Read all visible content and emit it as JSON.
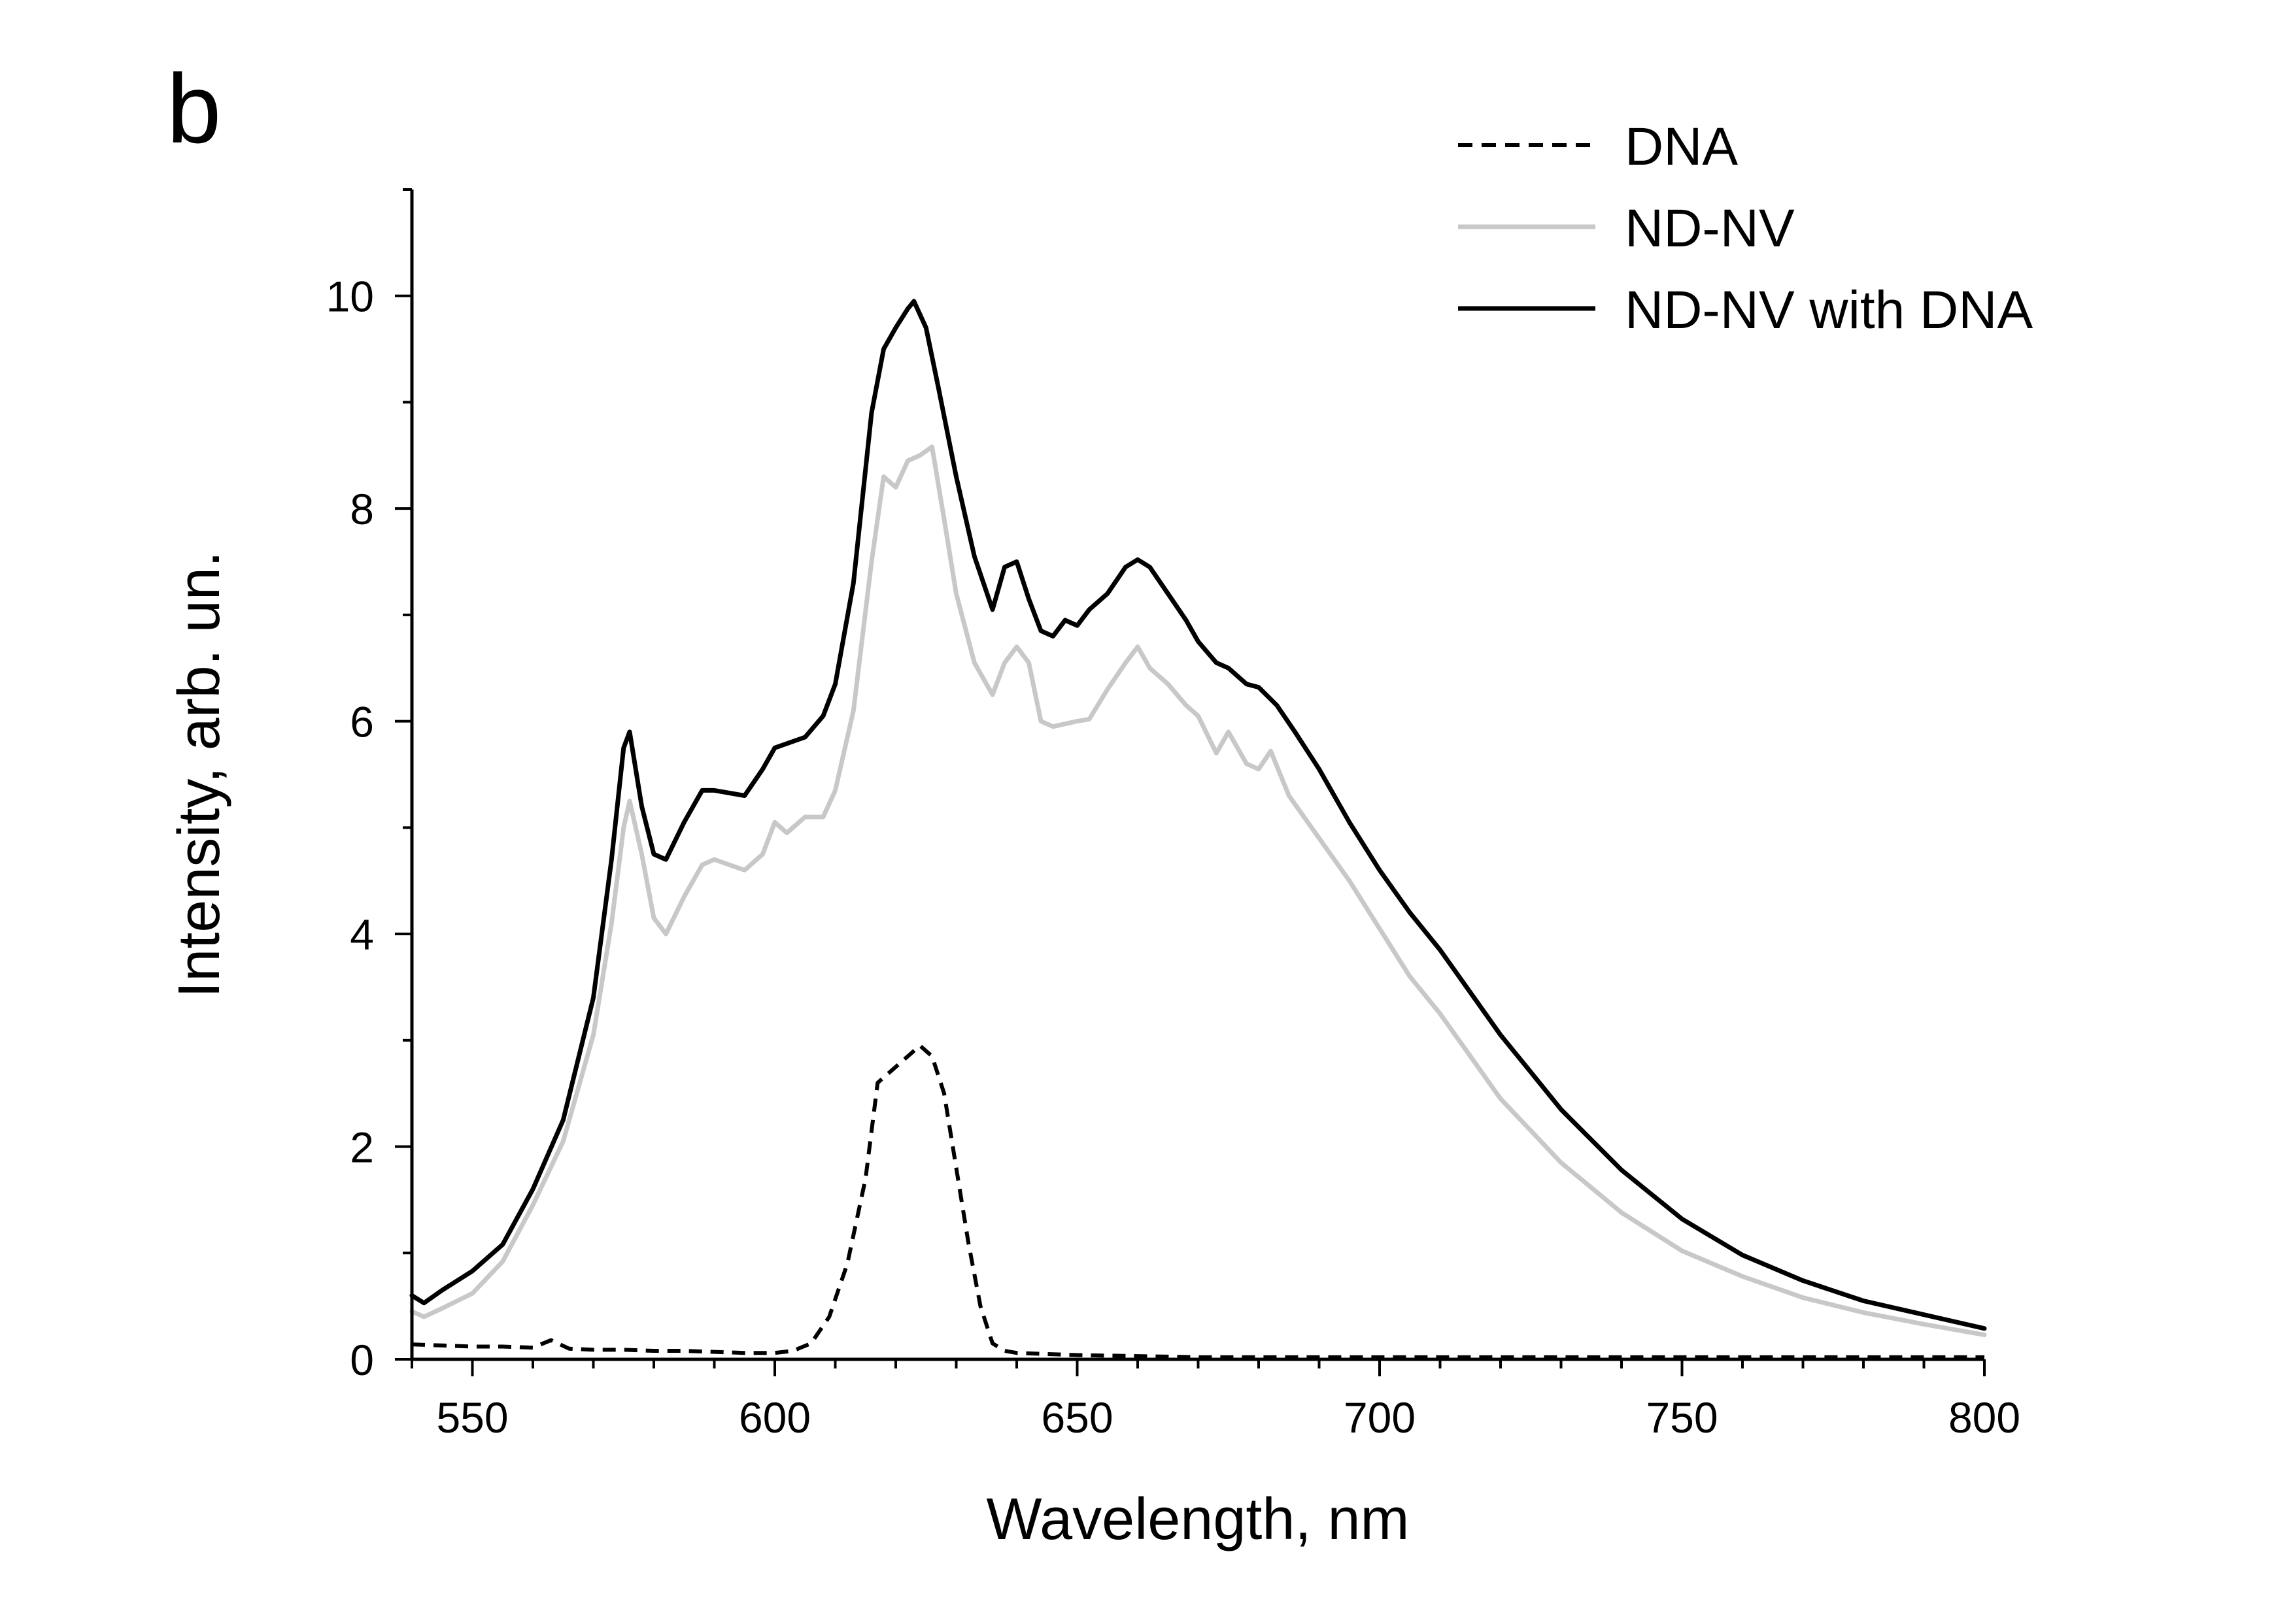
{
  "panel_label": "b",
  "chart_data": {
    "type": "line",
    "xlabel": "Wavelength, nm",
    "ylabel": "Intensity, arb. un.",
    "xlim": [
      540,
      800
    ],
    "ylim": [
      0,
      11
    ],
    "x_ticks": [
      550,
      600,
      650,
      700,
      750,
      800
    ],
    "y_ticks": [
      0,
      2,
      4,
      6,
      8,
      10
    ],
    "x_ticks_labels": [
      "550",
      "600",
      "650",
      "700",
      "750",
      "800"
    ],
    "y_ticks_labels": [
      "0",
      "2",
      "4",
      "6",
      "8",
      "10"
    ],
    "x_minor_step": 10,
    "y_minor_step": 1,
    "grid": false,
    "legend_position": "top-right",
    "series": [
      {
        "name": "DNA",
        "color": "#000000",
        "style": "dashed",
        "x": [
          540,
          545,
          550,
          555,
          560,
          563,
          566,
          570,
          575,
          580,
          585,
          590,
          595,
          600,
          603,
          606,
          609,
          612,
          615,
          617,
          620,
          622,
          624,
          626,
          628,
          630,
          632,
          634,
          636,
          638,
          640,
          645,
          650,
          660,
          670,
          700,
          750,
          800
        ],
        "values": [
          0.14,
          0.13,
          0.12,
          0.12,
          0.11,
          0.18,
          0.1,
          0.09,
          0.09,
          0.08,
          0.08,
          0.07,
          0.06,
          0.06,
          0.08,
          0.15,
          0.4,
          0.9,
          1.7,
          2.6,
          2.75,
          2.85,
          2.95,
          2.85,
          2.5,
          1.8,
          1.1,
          0.5,
          0.15,
          0.08,
          0.06,
          0.05,
          0.04,
          0.03,
          0.02,
          0.02,
          0.02,
          0.02
        ]
      },
      {
        "name": "ND-NV",
        "color": "#c8c8c8",
        "style": "solid",
        "x": [
          540,
          542,
          545,
          550,
          555,
          560,
          565,
          570,
          573,
          575,
          576,
          578,
          580,
          582,
          585,
          588,
          590,
          595,
          598,
          600,
          602,
          605,
          608,
          610,
          613,
          616,
          618,
          620,
          622,
          624,
          626,
          628,
          630,
          633,
          636,
          638,
          640,
          642,
          644,
          646,
          650,
          652,
          655,
          658,
          660,
          662,
          665,
          668,
          670,
          673,
          675,
          678,
          680,
          682,
          685,
          690,
          695,
          700,
          705,
          710,
          715,
          720,
          725,
          730,
          740,
          750,
          760,
          770,
          780,
          790,
          800
        ],
        "values": [
          0.45,
          0.4,
          0.48,
          0.62,
          0.92,
          1.45,
          2.05,
          3.05,
          4.1,
          5.0,
          5.25,
          4.75,
          4.15,
          4.0,
          4.35,
          4.65,
          4.7,
          4.6,
          4.75,
          5.05,
          4.95,
          5.1,
          5.1,
          5.35,
          6.1,
          7.5,
          8.3,
          8.2,
          8.45,
          8.5,
          8.58,
          7.9,
          7.2,
          6.55,
          6.25,
          6.55,
          6.7,
          6.55,
          6.0,
          5.95,
          6.0,
          6.02,
          6.3,
          6.55,
          6.7,
          6.5,
          6.35,
          6.15,
          6.05,
          5.7,
          5.9,
          5.6,
          5.55,
          5.72,
          5.3,
          4.9,
          4.5,
          4.05,
          3.6,
          3.25,
          2.85,
          2.45,
          2.15,
          1.85,
          1.38,
          1.02,
          0.78,
          0.58,
          0.44,
          0.33,
          0.23
        ]
      },
      {
        "name": "ND-NV with DNA",
        "color": "#000000",
        "style": "solid",
        "x": [
          540,
          542,
          545,
          550,
          555,
          560,
          565,
          570,
          573,
          575,
          576,
          578,
          580,
          582,
          585,
          588,
          590,
          595,
          598,
          600,
          605,
          608,
          610,
          613,
          616,
          618,
          620,
          622,
          623,
          625,
          627,
          630,
          633,
          636,
          638,
          640,
          642,
          644,
          646,
          648,
          650,
          652,
          655,
          658,
          660,
          662,
          665,
          668,
          670,
          673,
          675,
          678,
          680,
          683,
          686,
          690,
          695,
          700,
          705,
          710,
          715,
          720,
          725,
          730,
          740,
          750,
          760,
          770,
          780,
          790,
          800
        ],
        "values": [
          0.6,
          0.53,
          0.65,
          0.83,
          1.08,
          1.6,
          2.25,
          3.4,
          4.7,
          5.75,
          5.9,
          5.2,
          4.75,
          4.7,
          5.05,
          5.35,
          5.35,
          5.3,
          5.55,
          5.75,
          5.85,
          6.05,
          6.35,
          7.3,
          8.9,
          9.5,
          9.7,
          9.88,
          9.95,
          9.7,
          9.15,
          8.3,
          7.55,
          7.05,
          7.45,
          7.5,
          7.15,
          6.85,
          6.8,
          6.95,
          6.9,
          7.05,
          7.2,
          7.45,
          7.52,
          7.45,
          7.2,
          6.95,
          6.75,
          6.55,
          6.5,
          6.35,
          6.32,
          6.15,
          5.9,
          5.55,
          5.05,
          4.6,
          4.2,
          3.85,
          3.45,
          3.05,
          2.7,
          2.35,
          1.78,
          1.32,
          0.98,
          0.74,
          0.55,
          0.42,
          0.29
        ]
      }
    ]
  }
}
